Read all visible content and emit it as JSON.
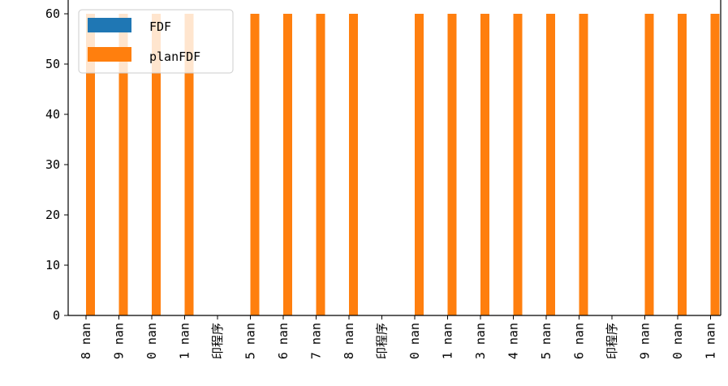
{
  "chart_data": {
    "type": "bar",
    "categories": [
      "8 nan",
      "9 nan",
      "0 nan",
      "1 nan",
      "印程序",
      "5 nan",
      "6 nan",
      "7 nan",
      "8 nan",
      "印程序",
      "0 nan",
      "1 nan",
      "3 nan",
      "4 nan",
      "5 nan",
      "6 nan",
      "印程序",
      "9 nan",
      "0 nan",
      "1 nan"
    ],
    "series": [
      {
        "name": "FDF",
        "color": "#1f77b4",
        "values": [
          0,
          0,
          0,
          0,
          0,
          0,
          0,
          0,
          0,
          0,
          0,
          0,
          0,
          0,
          0,
          0,
          0,
          0,
          0,
          0
        ]
      },
      {
        "name": "planFDF",
        "color": "#ff7f0e",
        "values": [
          60,
          60,
          60,
          60,
          0,
          60,
          60,
          60,
          60,
          0,
          60,
          60,
          60,
          60,
          60,
          60,
          0,
          60,
          60,
          60
        ]
      }
    ],
    "y_ticks": [
      0,
      10,
      20,
      30,
      40,
      50,
      60
    ],
    "ylim": [
      0,
      60.8
    ],
    "legend_position": "upper-left",
    "grid": false
  }
}
